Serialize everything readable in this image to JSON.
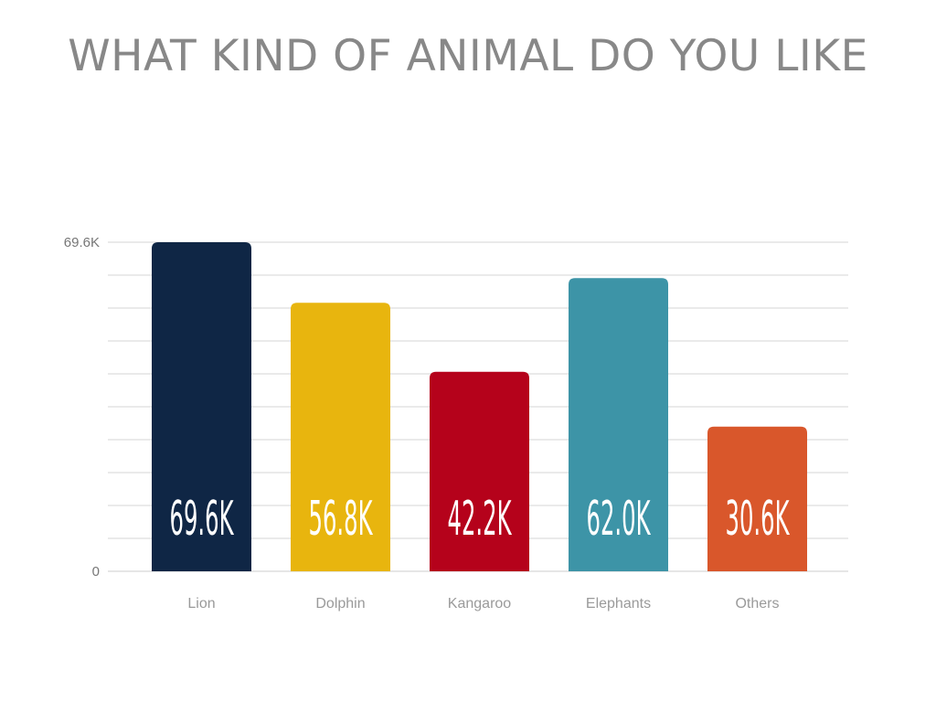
{
  "chart_data": {
    "type": "bar",
    "title": "WHAT KIND OF ANIMAL DO YOU LIKE",
    "xlabel": "",
    "ylabel": "",
    "categories": [
      "Lion",
      "Dolphin",
      "Kangaroo",
      "Elephants",
      "Others"
    ],
    "values": [
      69.6,
      56.8,
      42.2,
      62.0,
      30.6
    ],
    "value_unit": "K",
    "data_labels": [
      "69.6K",
      "56.8K",
      "42.2K",
      "62.0K",
      "30.6K"
    ],
    "ylim": [
      0,
      69.6
    ],
    "y_tick_labels": [
      {
        "value": 0,
        "label": "0"
      },
      {
        "value": 69.6,
        "label": "69.6K"
      }
    ],
    "grid": true,
    "legend": "none",
    "colors": [
      "#0f2645",
      "#e8b50e",
      "#b5021b",
      "#3d94a7",
      "#d9572b"
    ]
  }
}
